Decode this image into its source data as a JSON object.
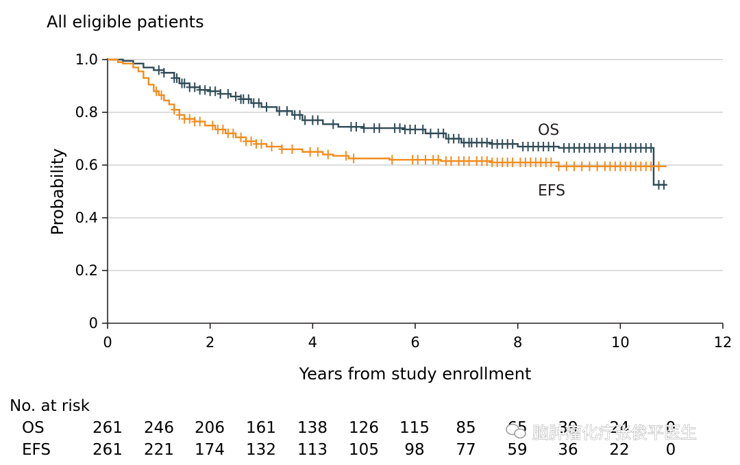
{
  "chart_data": {
    "type": "line",
    "title": "All eligible patients",
    "xlabel": "Years from study enrollment",
    "ylabel": "Probability",
    "xlim": [
      0,
      12
    ],
    "ylim": [
      0,
      1.0
    ],
    "x_ticks": [
      0,
      2,
      4,
      6,
      8,
      10,
      12
    ],
    "y_ticks": [
      0,
      0.2,
      0.4,
      0.6,
      0.8,
      1.0
    ],
    "y_tick_labels": [
      "0",
      "0.2",
      "0.4",
      "0.6",
      "0.8",
      "1.0"
    ],
    "grid": true,
    "series": [
      {
        "name": "OS",
        "color": "#2e4a56",
        "steps": [
          [
            0,
            1.0
          ],
          [
            0.3,
            0.995
          ],
          [
            0.5,
            0.985
          ],
          [
            0.7,
            0.97
          ],
          [
            0.9,
            0.96
          ],
          [
            1.1,
            0.95
          ],
          [
            1.3,
            0.93
          ],
          [
            1.4,
            0.91
          ],
          [
            1.6,
            0.895
          ],
          [
            1.8,
            0.885
          ],
          [
            2.0,
            0.88
          ],
          [
            2.2,
            0.87
          ],
          [
            2.4,
            0.86
          ],
          [
            2.6,
            0.85
          ],
          [
            2.8,
            0.835
          ],
          [
            3.0,
            0.82
          ],
          [
            3.3,
            0.805
          ],
          [
            3.6,
            0.79
          ],
          [
            3.8,
            0.77
          ],
          [
            4.2,
            0.755
          ],
          [
            4.5,
            0.745
          ],
          [
            5.0,
            0.74
          ],
          [
            5.8,
            0.735
          ],
          [
            6.2,
            0.72
          ],
          [
            6.6,
            0.7
          ],
          [
            6.9,
            0.685
          ],
          [
            7.5,
            0.68
          ],
          [
            8.0,
            0.67
          ],
          [
            8.8,
            0.665
          ],
          [
            10.65,
            0.525
          ],
          [
            10.9,
            0.525
          ]
        ],
        "censor_x": [
          1.0,
          1.1,
          1.3,
          1.35,
          1.45,
          1.5,
          1.6,
          1.7,
          1.8,
          1.9,
          2.0,
          2.1,
          2.2,
          2.35,
          2.5,
          2.6,
          2.65,
          2.75,
          2.85,
          2.95,
          3.1,
          3.35,
          3.5,
          3.65,
          3.75,
          3.85,
          4.0,
          4.1,
          4.4,
          4.75,
          4.85,
          5.0,
          5.2,
          5.3,
          5.6,
          5.7,
          5.8,
          5.9,
          6.0,
          6.15,
          6.3,
          6.45,
          6.55,
          6.65,
          6.75,
          6.85,
          6.95,
          7.05,
          7.1,
          7.2,
          7.3,
          7.4,
          7.5,
          7.6,
          7.7,
          7.8,
          7.9,
          8.1,
          8.2,
          8.3,
          8.4,
          8.5,
          8.6,
          8.7,
          8.9,
          9.0,
          9.1,
          9.2,
          9.3,
          9.4,
          9.5,
          9.6,
          9.7,
          9.85,
          10.0,
          10.1,
          10.2,
          10.3,
          10.4,
          10.5,
          10.6,
          10.75,
          10.85
        ],
        "label_pos": [
          8.9,
          0.735
        ]
      },
      {
        "name": "EFS",
        "color": "#f08c1e",
        "steps": [
          [
            0,
            1.0
          ],
          [
            0.2,
            0.99
          ],
          [
            0.3,
            0.985
          ],
          [
            0.5,
            0.97
          ],
          [
            0.6,
            0.955
          ],
          [
            0.7,
            0.93
          ],
          [
            0.8,
            0.905
          ],
          [
            0.9,
            0.88
          ],
          [
            1.0,
            0.865
          ],
          [
            1.1,
            0.845
          ],
          [
            1.2,
            0.83
          ],
          [
            1.3,
            0.81
          ],
          [
            1.4,
            0.79
          ],
          [
            1.5,
            0.775
          ],
          [
            1.7,
            0.765
          ],
          [
            1.9,
            0.75
          ],
          [
            2.1,
            0.735
          ],
          [
            2.3,
            0.72
          ],
          [
            2.5,
            0.705
          ],
          [
            2.7,
            0.69
          ],
          [
            2.9,
            0.68
          ],
          [
            3.1,
            0.67
          ],
          [
            3.4,
            0.66
          ],
          [
            3.8,
            0.65
          ],
          [
            4.2,
            0.64
          ],
          [
            4.4,
            0.635
          ],
          [
            4.7,
            0.625
          ],
          [
            5.5,
            0.62
          ],
          [
            6.5,
            0.615
          ],
          [
            7.5,
            0.61
          ],
          [
            8.8,
            0.595
          ],
          [
            10.9,
            0.595
          ]
        ],
        "censor_x": [
          0.95,
          1.05,
          1.3,
          1.4,
          1.5,
          1.6,
          1.7,
          1.8,
          2.05,
          2.15,
          2.25,
          2.35,
          2.45,
          2.6,
          2.7,
          2.8,
          2.9,
          3.0,
          3.2,
          3.4,
          3.6,
          3.95,
          4.1,
          4.3,
          4.65,
          4.8,
          5.55,
          5.95,
          6.05,
          6.2,
          6.35,
          6.45,
          6.6,
          6.7,
          6.85,
          6.95,
          7.05,
          7.2,
          7.3,
          7.4,
          7.5,
          7.6,
          7.7,
          7.8,
          7.9,
          8.05,
          8.15,
          8.25,
          8.35,
          8.45,
          8.55,
          8.65,
          8.8,
          8.95,
          9.1,
          9.25,
          9.4,
          9.55,
          9.7,
          9.8,
          9.9,
          10.0,
          10.1,
          10.2,
          10.3,
          10.4,
          10.5,
          10.6,
          10.75
        ],
        "label_pos": [
          8.9,
          0.505
        ]
      }
    ]
  },
  "risk_table": {
    "title": "No. at risk",
    "rows": [
      {
        "label": "OS",
        "values": [
          "261",
          "246",
          "206",
          "161",
          "138",
          "126",
          "115",
          "85",
          "65",
          "39",
          "24",
          "0"
        ]
      },
      {
        "label": "EFS",
        "values": [
          "261",
          "221",
          "174",
          "132",
          "113",
          "105",
          "98",
          "77",
          "59",
          "36",
          "22",
          "0"
        ]
      }
    ]
  },
  "watermark": {
    "text": "脑肿瘤化疗张俊平医生",
    "icon": "wechat-icon"
  }
}
